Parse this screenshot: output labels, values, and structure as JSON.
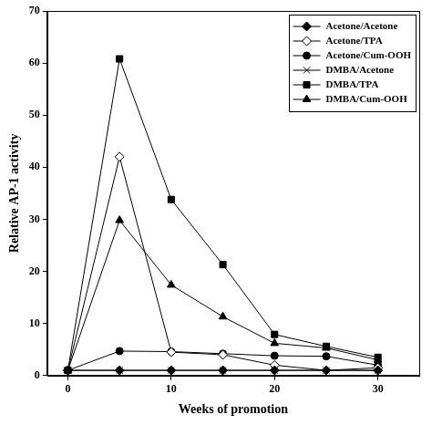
{
  "chart_data": {
    "type": "line",
    "x_label": "Weeks of promotion",
    "y_label": "Relative AP-1 activity",
    "x": [
      0,
      5,
      10,
      15,
      20,
      25,
      30
    ],
    "xlim": [
      -2,
      34
    ],
    "xticks": [
      0,
      10,
      20,
      30
    ],
    "ylim": [
      0,
      70
    ],
    "yticks": [
      0,
      10,
      20,
      30,
      40,
      50,
      60,
      70
    ],
    "grid": false,
    "legend": "upper right",
    "series": [
      {
        "name": "Acetone/Acetone",
        "color": "#000000",
        "marker": "diamond",
        "values": [
          1,
          1,
          1,
          1,
          1,
          1,
          1
        ]
      },
      {
        "name": "Acetone/TPA",
        "color": "#000000",
        "marker": "diamond-open",
        "values": [
          1,
          42,
          4.5,
          4,
          2,
          1,
          1.5
        ]
      },
      {
        "name": "Acetone/Cum-OOH",
        "color": "#000000",
        "marker": "circle",
        "values": [
          1,
          4.7,
          4.6,
          4.2,
          3.8,
          3.7,
          2
        ]
      },
      {
        "name": "DMBA/Acetone",
        "color": "#000000",
        "marker": "x",
        "values": [
          1,
          1,
          1,
          1,
          1,
          1,
          1
        ]
      },
      {
        "name": "DMBA/TPA",
        "color": "#000000",
        "marker": "square",
        "values": [
          1,
          60.8,
          33.8,
          21.3,
          7.9,
          5.6,
          3.5
        ]
      },
      {
        "name": "DMBA/Cum-OOH",
        "color": "#000000",
        "marker": "triangle",
        "values": [
          1,
          29.8,
          17.4,
          11.3,
          6.2,
          5.3,
          3
        ]
      }
    ]
  }
}
